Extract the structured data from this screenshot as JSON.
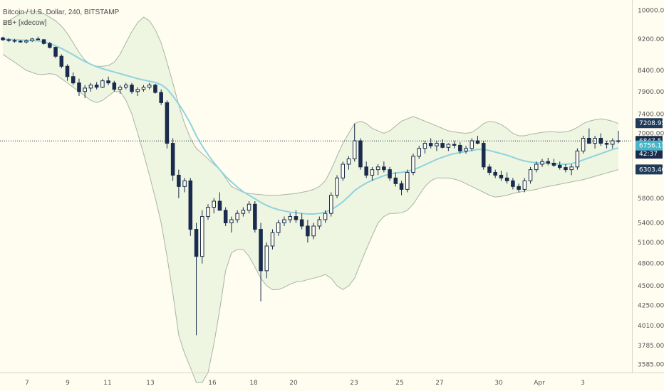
{
  "header": {
    "title": "Bitcoin / U.S. Dollar, 240, BITSTAMP",
    "indicator": "BB+ [xdecow]"
  },
  "colors": {
    "background": "#fffdf0",
    "candle_up": "#1a2b4d",
    "candle_down": "#1a2b4d",
    "basis": "#8fd3e0",
    "band_line": "#a8b5a8",
    "band_fill": "#eef5e0",
    "price_line": "#1a2b4d"
  },
  "price_axis": {
    "ticks": [
      "10000.00",
      "9200.00",
      "8400.00",
      "7900.00",
      "7400.00",
      "7000.00",
      "5800.00",
      "5400.00",
      "5100.00",
      "4800.00",
      "4500.00",
      "4250.00",
      "4010.00",
      "3785.00",
      "3585.00"
    ],
    "tags": [
      {
        "label": "7208.95",
        "value": 7208.95,
        "color": "#1f3a5a"
      },
      {
        "label": "6847.51",
        "value": 6847.51,
        "color": "#1a2b4d"
      },
      {
        "label": "42:37",
        "value": 6600,
        "color": "#1a2b4d",
        "prefix": "6"
      },
      {
        "label": "6756.17",
        "value": 6756.17,
        "color": "#4bb5c8"
      },
      {
        "label": "6303.40",
        "value": 6303.4,
        "color": "#1f3a5a"
      }
    ]
  },
  "time_axis": {
    "ticks": [
      "7",
      "9",
      "11",
      "13",
      "16",
      "18",
      "20",
      "23",
      "25",
      "27",
      "30",
      "Apr",
      "3"
    ]
  },
  "chart_data": {
    "type": "candlestick",
    "title": "Bitcoin / U.S. Dollar, 240, BITSTAMP",
    "series_name": "BB+ [xdecow]",
    "ylim": [
      3500,
      10300
    ],
    "last_price": 6847.51,
    "candles": [
      [
        9230,
        9260,
        9150,
        9180
      ],
      [
        9180,
        9220,
        9120,
        9160
      ],
      [
        9160,
        9200,
        9100,
        9140
      ],
      [
        9140,
        9180,
        9100,
        9120
      ],
      [
        9120,
        9190,
        9080,
        9150
      ],
      [
        9150,
        9230,
        9120,
        9200
      ],
      [
        9200,
        9260,
        9180,
        9180
      ],
      [
        9180,
        9200,
        9050,
        9080
      ],
      [
        9080,
        9120,
        8950,
        8980
      ],
      [
        8980,
        9000,
        8700,
        8750
      ],
      [
        8750,
        8800,
        8450,
        8500
      ],
      [
        8500,
        8550,
        8150,
        8250
      ],
      [
        8250,
        8350,
        8050,
        8100
      ],
      [
        8100,
        8200,
        7800,
        7900
      ],
      [
        7900,
        8050,
        7750,
        7980
      ],
      [
        7980,
        8100,
        7900,
        8050
      ],
      [
        8050,
        8120,
        7950,
        8000
      ],
      [
        8000,
        8200,
        7980,
        8150
      ],
      [
        8150,
        8250,
        8050,
        8100
      ],
      [
        8100,
        8150,
        7900,
        7950
      ],
      [
        7950,
        8050,
        7850,
        8000
      ],
      [
        8000,
        8100,
        7950,
        8050
      ],
      [
        8050,
        8100,
        7850,
        7900
      ],
      [
        7900,
        8000,
        7800,
        7950
      ],
      [
        7950,
        8050,
        7900,
        8000
      ],
      [
        8000,
        8100,
        7950,
        8050
      ],
      [
        8050,
        8080,
        7850,
        7880
      ],
      [
        7880,
        7950,
        7600,
        7650
      ],
      [
        7650,
        7700,
        6700,
        6800
      ],
      [
        6800,
        6900,
        6100,
        6200
      ],
      [
        6200,
        6300,
        5800,
        6000
      ],
      [
        6000,
        6150,
        5900,
        6100
      ],
      [
        6100,
        6150,
        5200,
        5300
      ],
      [
        5300,
        5400,
        3900,
        4900
      ],
      [
        4900,
        5600,
        4800,
        5500
      ],
      [
        5500,
        5700,
        5450,
        5650
      ],
      [
        5650,
        5800,
        5550,
        5750
      ],
      [
        5750,
        5900,
        5650,
        5600
      ],
      [
        5600,
        5650,
        5350,
        5400
      ],
      [
        5400,
        5500,
        5250,
        5450
      ],
      [
        5450,
        5600,
        5400,
        5550
      ],
      [
        5550,
        5650,
        5500,
        5600
      ],
      [
        5600,
        5750,
        5550,
        5700
      ],
      [
        5700,
        5750,
        5250,
        5300
      ],
      [
        5300,
        5400,
        4300,
        4700
      ],
      [
        4700,
        5100,
        4600,
        5050
      ],
      [
        5050,
        5300,
        5000,
        5250
      ],
      [
        5250,
        5450,
        5200,
        5400
      ],
      [
        5400,
        5500,
        5350,
        5450
      ],
      [
        5450,
        5550,
        5400,
        5500
      ],
      [
        5500,
        5600,
        5400,
        5450
      ],
      [
        5450,
        5550,
        5300,
        5350
      ],
      [
        5350,
        5450,
        5100,
        5200
      ],
      [
        5200,
        5400,
        5150,
        5350
      ],
      [
        5350,
        5500,
        5300,
        5450
      ],
      [
        5450,
        5600,
        5400,
        5550
      ],
      [
        5550,
        5900,
        5500,
        5850
      ],
      [
        5850,
        6200,
        5800,
        6150
      ],
      [
        6150,
        6450,
        6100,
        6400
      ],
      [
        6400,
        6550,
        6300,
        6500
      ],
      [
        6500,
        7200,
        6450,
        6850
      ],
      [
        6850,
        6900,
        6300,
        6350
      ],
      [
        6350,
        6450,
        6150,
        6200
      ],
      [
        6200,
        6350,
        6100,
        6300
      ],
      [
        6300,
        6400,
        6200,
        6350
      ],
      [
        6350,
        6450,
        6250,
        6300
      ],
      [
        6300,
        6350,
        6100,
        6150
      ],
      [
        6150,
        6250,
        6000,
        6050
      ],
      [
        6050,
        6100,
        5850,
        5950
      ],
      [
        5950,
        6300,
        5900,
        6250
      ],
      [
        6250,
        6600,
        6200,
        6550
      ],
      [
        6550,
        6750,
        6500,
        6700
      ],
      [
        6700,
        6850,
        6600,
        6800
      ],
      [
        6800,
        6900,
        6700,
        6750
      ],
      [
        6750,
        6850,
        6650,
        6800
      ],
      [
        6800,
        6880,
        6700,
        6720
      ],
      [
        6720,
        6800,
        6650,
        6780
      ],
      [
        6780,
        6850,
        6700,
        6760
      ],
      [
        6760,
        6820,
        6600,
        6650
      ],
      [
        6650,
        6750,
        6600,
        6700
      ],
      [
        6700,
        6900,
        6650,
        6850
      ],
      [
        6850,
        6950,
        6780,
        6800
      ],
      [
        6800,
        6850,
        6300,
        6350
      ],
      [
        6350,
        6400,
        6200,
        6250
      ],
      [
        6250,
        6300,
        6150,
        6200
      ],
      [
        6200,
        6280,
        6100,
        6150
      ],
      [
        6150,
        6250,
        6050,
        6100
      ],
      [
        6100,
        6150,
        5950,
        6000
      ],
      [
        6000,
        6050,
        5900,
        5950
      ],
      [
        5950,
        6150,
        5900,
        6100
      ],
      [
        6100,
        6350,
        6050,
        6300
      ],
      [
        6300,
        6450,
        6250,
        6400
      ],
      [
        6400,
        6500,
        6350,
        6450
      ],
      [
        6450,
        6520,
        6380,
        6420
      ],
      [
        6420,
        6500,
        6350,
        6380
      ],
      [
        6380,
        6450,
        6300,
        6340
      ],
      [
        6340,
        6400,
        6250,
        6300
      ],
      [
        6300,
        6400,
        6200,
        6350
      ],
      [
        6350,
        6700,
        6300,
        6650
      ],
      [
        6650,
        6950,
        6600,
        6900
      ],
      [
        6900,
        7100,
        6850,
        6800
      ],
      [
        6800,
        6950,
        6700,
        6900
      ],
      [
        6900,
        7000,
        6750,
        6800
      ],
      [
        6800,
        6850,
        6700,
        6780
      ],
      [
        6780,
        6900,
        6700,
        6850
      ],
      [
        6850,
        7050,
        6800,
        6848
      ]
    ],
    "basis": [
      9200,
      9190,
      9180,
      9170,
      9165,
      9160,
      9150,
      9120,
      9080,
      9020,
      8950,
      8870,
      8790,
      8700,
      8620,
      8550,
      8490,
      8440,
      8400,
      8360,
      8320,
      8280,
      8240,
      8200,
      8170,
      8140,
      8110,
      8060,
      7960,
      7800,
      7620,
      7420,
      7200,
      6950,
      6750,
      6580,
      6430,
      6300,
      6180,
      6080,
      5990,
      5910,
      5850,
      5790,
      5730,
      5680,
      5640,
      5610,
      5590,
      5570,
      5560,
      5550,
      5540,
      5540,
      5550,
      5570,
      5610,
      5670,
      5740,
      5830,
      5930,
      6000,
      6060,
      6110,
      6150,
      6190,
      6220,
      6240,
      6250,
      6270,
      6300,
      6340,
      6390,
      6440,
      6490,
      6530,
      6570,
      6600,
      6620,
      6640,
      6660,
      6680,
      6680,
      6660,
      6630,
      6600,
      6570,
      6530,
      6490,
      6460,
      6440,
      6430,
      6420,
      6420,
      6410,
      6400,
      6400,
      6410,
      6440,
      6480,
      6520,
      6560,
      6600,
      6640,
      6680,
      6710
    ],
    "upper": [
      9600,
      9700,
      9800,
      9900,
      9950,
      9980,
      9950,
      9900,
      9800,
      9700,
      9550,
      9350,
      9100,
      8850,
      8650,
      8550,
      8500,
      8500,
      8520,
      8600,
      8800,
      9100,
      9400,
      9650,
      9800,
      9700,
      9450,
      9100,
      8600,
      8100,
      7600,
      7200,
      6900,
      6700,
      6600,
      6500,
      6400,
      6300,
      6150,
      6000,
      5950,
      5900,
      5880,
      5870,
      5860,
      5850,
      5850,
      5850,
      5860,
      5870,
      5880,
      5900,
      5920,
      5950,
      6000,
      6100,
      6300,
      6550,
      6800,
      7000,
      7200,
      7250,
      7200,
      7100,
      7050,
      7000,
      7050,
      7150,
      7250,
      7300,
      7350,
      7300,
      7250,
      7200,
      7150,
      7100,
      7050,
      7030,
      7010,
      7000,
      7020,
      7100,
      7200,
      7250,
      7230,
      7180,
      7100,
      7000,
      6950,
      6950,
      6980,
      7000,
      7020,
      7030,
      7030,
      7020,
      7030,
      7060,
      7120,
      7200,
      7250,
      7280,
      7300,
      7280,
      7250,
      7200
    ],
    "lower": [
      8800,
      8700,
      8600,
      8500,
      8400,
      8350,
      8300,
      8300,
      8320,
      8300,
      8200,
      8100,
      8000,
      7900,
      7800,
      7700,
      7650,
      7700,
      7800,
      7900,
      7900,
      7700,
      7400,
      7000,
      6600,
      6200,
      5800,
      5400,
      4900,
      4400,
      3900,
      3700,
      3550,
      3400,
      3400,
      3500,
      3800,
      4200,
      4700,
      4950,
      5000,
      5000,
      4900,
      4750,
      4600,
      4500,
      4450,
      4450,
      4480,
      4520,
      4550,
      4560,
      4580,
      4600,
      4620,
      4650,
      4600,
      4500,
      4450,
      4500,
      4600,
      4800,
      5000,
      5200,
      5400,
      5500,
      5550,
      5550,
      5560,
      5600,
      5700,
      5850,
      6000,
      6100,
      6150,
      6150,
      6150,
      6130,
      6100,
      6050,
      6000,
      5950,
      5900,
      5850,
      5820,
      5830,
      5850,
      5880,
      5900,
      5920,
      5930,
      5950,
      5980,
      6000,
      6020,
      6040,
      6060,
      6080,
      6100,
      6120,
      6150,
      6180,
      6210,
      6240,
      6270,
      6300
    ]
  }
}
